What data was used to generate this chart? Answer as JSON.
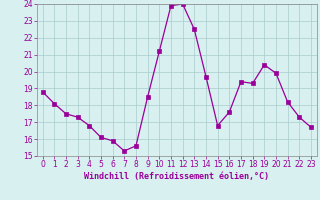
{
  "x": [
    0,
    1,
    2,
    3,
    4,
    5,
    6,
    7,
    8,
    9,
    10,
    11,
    12,
    13,
    14,
    15,
    16,
    17,
    18,
    19,
    20,
    21,
    22,
    23
  ],
  "y": [
    18.8,
    18.1,
    17.5,
    17.3,
    16.8,
    16.1,
    15.9,
    15.3,
    15.6,
    18.5,
    21.2,
    23.9,
    24.0,
    22.5,
    19.7,
    16.8,
    17.6,
    19.4,
    19.3,
    20.4,
    19.9,
    18.2,
    17.3,
    16.7
  ],
  "line_color": "#990099",
  "marker": "s",
  "marker_size": 2.5,
  "bg_color": "#d8f0f0",
  "grid_color": "#aacccc",
  "xlabel": "Windchill (Refroidissement éolien,°C)",
  "xlabel_color": "#990099",
  "tick_color": "#990099",
  "ylim": [
    15,
    24
  ],
  "xlim": [
    -0.5,
    23.5
  ],
  "yticks": [
    15,
    16,
    17,
    18,
    19,
    20,
    21,
    22,
    23,
    24
  ],
  "xticks": [
    0,
    1,
    2,
    3,
    4,
    5,
    6,
    7,
    8,
    9,
    10,
    11,
    12,
    13,
    14,
    15,
    16,
    17,
    18,
    19,
    20,
    21,
    22,
    23
  ],
  "tick_fontsize": 5.5,
  "xlabel_fontsize": 6.0
}
